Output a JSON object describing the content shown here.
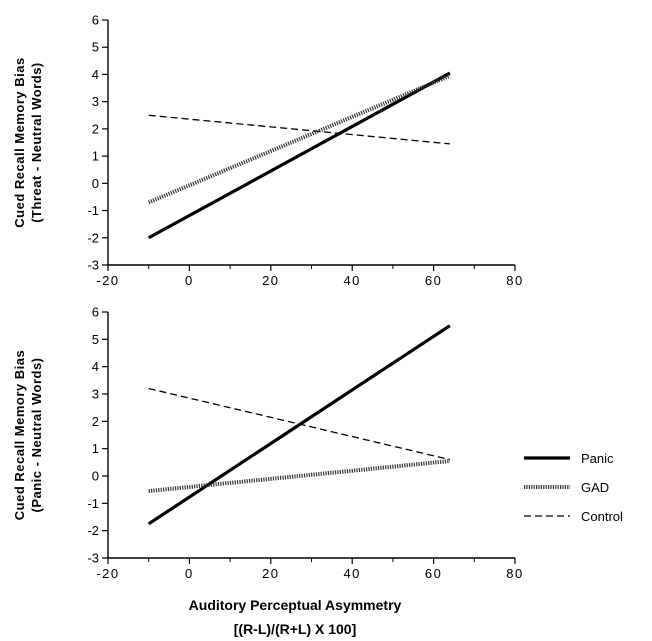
{
  "chart_data": [
    {
      "type": "line",
      "ylabel_lines": [
        "Cued Recall Memory Bias",
        "(Threat  -  Neutral Words)"
      ],
      "xlim": [
        -20,
        80
      ],
      "ylim": [
        -3,
        6
      ],
      "xticks": [
        "-20",
        "0",
        "20",
        "40",
        "60",
        "80"
      ],
      "yticks": [
        "-3",
        "-2",
        "-1",
        "0",
        "1",
        "2",
        "3",
        "4",
        "5",
        "6"
      ],
      "series": [
        {
          "name": "Panic",
          "style": "solid",
          "x": [
            -10,
            64
          ],
          "y": [
            -2.0,
            4.05
          ]
        },
        {
          "name": "GAD",
          "style": "dotted-thick",
          "x": [
            -10,
            64
          ],
          "y": [
            -0.7,
            3.95
          ]
        },
        {
          "name": "Control",
          "style": "dashed",
          "x": [
            -10,
            64
          ],
          "y": [
            2.5,
            1.45
          ]
        }
      ]
    },
    {
      "type": "line",
      "ylabel_lines": [
        "Cued Recall Memory Bias",
        "(Panic  -  Neutral Words)"
      ],
      "xlim": [
        -20,
        80
      ],
      "ylim": [
        -3,
        6
      ],
      "xticks": [
        "-20",
        "0",
        "20",
        "40",
        "60",
        "80"
      ],
      "yticks": [
        "-3",
        "-2",
        "-1",
        "0",
        "1",
        "2",
        "3",
        "4",
        "5",
        "6"
      ],
      "xlabel_lines": [
        "Auditory   Perceptual   Asymmetry",
        "[(R-L)/(R+L)  X  100]"
      ],
      "series": [
        {
          "name": "Panic",
          "style": "solid",
          "x": [
            -10,
            64
          ],
          "y": [
            -1.75,
            5.5
          ]
        },
        {
          "name": "GAD",
          "style": "dotted-thick",
          "x": [
            -10,
            64
          ],
          "y": [
            -0.55,
            0.55
          ]
        },
        {
          "name": "Control",
          "style": "dashed",
          "x": [
            -10,
            64
          ],
          "y": [
            3.2,
            0.6
          ]
        }
      ]
    }
  ],
  "legend": {
    "placement": "right",
    "items": [
      {
        "label": "Panic",
        "style": "solid"
      },
      {
        "label": "GAD",
        "style": "dotted-thick"
      },
      {
        "label": "Control",
        "style": "dashed"
      }
    ]
  }
}
